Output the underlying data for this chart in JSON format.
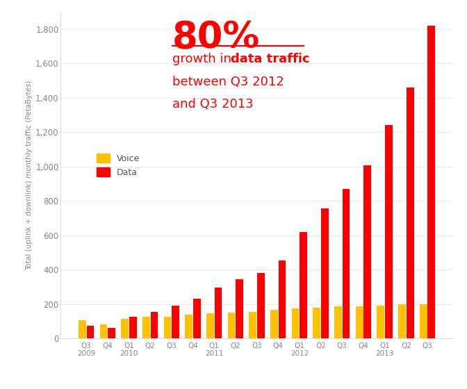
{
  "categories": [
    "Q3\n2009",
    "Q4",
    "Q1\n2010",
    "Q2",
    "Q3",
    "Q4",
    "Q1\n2011",
    "Q2",
    "Q3",
    "Q4",
    "Q1\n2012",
    "Q2",
    "Q3",
    "Q4",
    "Q1\n2013",
    "Q2",
    "Q3"
  ],
  "voice": [
    105,
    80,
    115,
    125,
    128,
    140,
    148,
    150,
    155,
    165,
    175,
    180,
    185,
    185,
    190,
    200,
    200
  ],
  "data": [
    72,
    62,
    128,
    155,
    190,
    230,
    295,
    345,
    380,
    455,
    620,
    755,
    870,
    1005,
    1240,
    1460,
    1820
  ],
  "voice_color": "#FFC200",
  "data_color": "#FF0000",
  "bg_color": "#FFFFFF",
  "ylabel": "Total (uplink + downlink) monthly traffic (PetaBytes)",
  "ylim": [
    0,
    1900
  ],
  "yticks": [
    0,
    200,
    400,
    600,
    800,
    1000,
    1200,
    1400,
    1600,
    1800
  ],
  "ytick_labels": [
    "0",
    "200",
    "400",
    "600",
    "800",
    "1,000",
    "1,200",
    "1,400",
    "1,600",
    "1,800"
  ],
  "annotation_big": "80%",
  "annotation_color": "#FF0000",
  "legend_voice": "Voice",
  "legend_data": "Data"
}
